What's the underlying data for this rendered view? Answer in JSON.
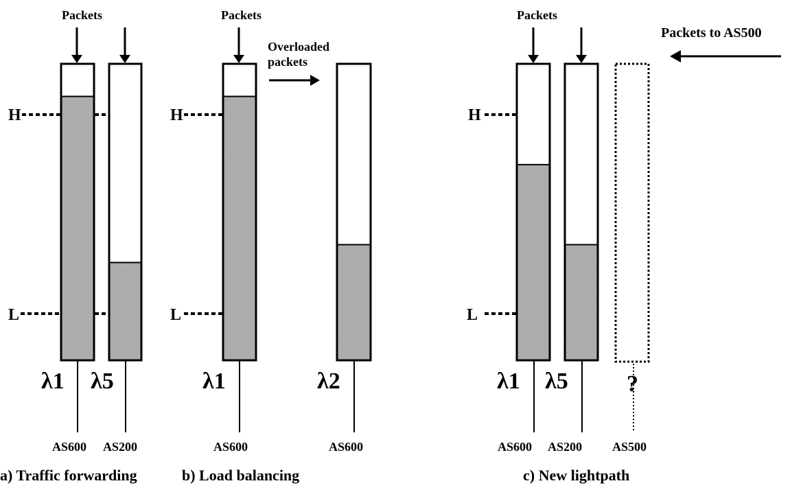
{
  "panels": [
    {
      "caption": "a) Traffic forwarding",
      "packets_label": "Packets",
      "level_high": "H",
      "level_low": "L",
      "queues": [
        {
          "lambda": "λ1",
          "as": "AS600",
          "fill_fraction": 0.89
        },
        {
          "lambda": "λ5",
          "as": "AS200",
          "fill_fraction": 0.33
        }
      ]
    },
    {
      "caption": "b) Load balancing",
      "packets_label": "Packets",
      "overload_label_line1": "Overloaded",
      "overload_label_line2": "packets",
      "level_high": "H",
      "level_low": "L",
      "queues": [
        {
          "lambda": "λ1",
          "as": "AS600",
          "fill_fraction": 0.89
        },
        {
          "lambda": "λ2",
          "as": "AS600",
          "fill_fraction": 0.39
        }
      ]
    },
    {
      "caption": "c) New lightpath",
      "packets_label": "Packets",
      "incoming_label": "Packets to AS500",
      "level_high": "H",
      "level_low": "L",
      "queues": [
        {
          "lambda": "λ1",
          "as": "AS600",
          "fill_fraction": 0.66
        },
        {
          "lambda": "λ5",
          "as": "AS200",
          "fill_fraction": 0.39
        },
        {
          "lambda": "?",
          "as": "AS500",
          "fill_fraction": 0,
          "dotted": true
        }
      ]
    }
  ],
  "colors": {
    "stroke": "#000000",
    "fill": "#aaaaaa",
    "background": "#ffffff"
  }
}
